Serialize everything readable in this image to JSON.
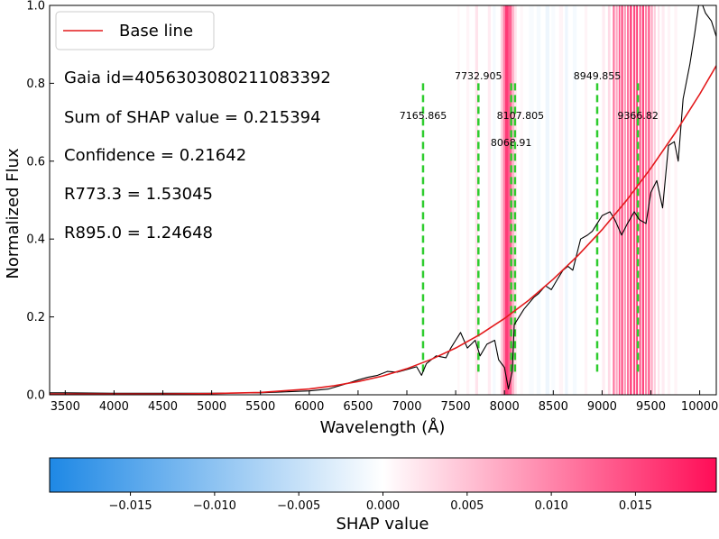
{
  "chart_data": {
    "type": "line",
    "xlabel": "Wavelength (Å)",
    "ylabel": "Normalized Flux",
    "xlim": [
      3340,
      10170
    ],
    "ylim": [
      0,
      1.0
    ],
    "x_ticks": [
      3500,
      4000,
      4500,
      5000,
      5500,
      6000,
      6500,
      7000,
      7500,
      8000,
      8500,
      9000,
      9500,
      10000
    ],
    "y_ticks": [
      0.0,
      0.2,
      0.4,
      0.6,
      0.8,
      1.0
    ],
    "y_tick_labels": [
      "0.0",
      "0.2",
      "0.4",
      "0.6",
      "0.8",
      "1.0"
    ],
    "legend": {
      "position": "top-left",
      "entries": [
        {
          "label": "Base line",
          "color": "#e31a1c"
        }
      ]
    },
    "annotations": [
      "Gaia id=4056303080211083392",
      "Sum of SHAP value = 0.215394",
      "Confidence = 0.21642",
      "R773.3 = 1.53045",
      "R895.0 = 1.24648"
    ],
    "marked_lines": [
      {
        "wavelength": 7165.865,
        "label": "7165.865",
        "y_bottom": 0.05
      },
      {
        "wavelength": 7732.905,
        "label": "7732.905",
        "y_bottom": 0.05
      },
      {
        "wavelength": 8068.91,
        "label": "8068.91",
        "y_bottom": 0.05
      },
      {
        "wavelength": 8107.805,
        "label": "8107.805",
        "y_bottom": 0.05
      },
      {
        "wavelength": 8949.855,
        "label": "8949.855",
        "y_bottom": 0.05
      },
      {
        "wavelength": 9366.82,
        "label": "9366.82",
        "y_bottom": 0.05
      }
    ],
    "marked_line_top": 0.8,
    "baseline": {
      "name": "Base line",
      "x": [
        3340,
        3500,
        4000,
        4500,
        5000,
        5500,
        6000,
        6250,
        6500,
        6750,
        7000,
        7250,
        7500,
        7750,
        8000,
        8250,
        8500,
        8750,
        9000,
        9250,
        9500,
        9750,
        10000,
        10170
      ],
      "y": [
        0.002,
        0.002,
        0.002,
        0.002,
        0.003,
        0.006,
        0.015,
        0.023,
        0.034,
        0.048,
        0.067,
        0.091,
        0.12,
        0.155,
        0.196,
        0.243,
        0.297,
        0.357,
        0.424,
        0.499,
        0.582,
        0.673,
        0.772,
        0.845
      ]
    },
    "spectrum": {
      "name": "Spectrum",
      "x": [
        3340,
        3500,
        4000,
        4500,
        5000,
        5500,
        6000,
        6200,
        6400,
        6500,
        6600,
        6700,
        6800,
        6900,
        7000,
        7100,
        7150,
        7200,
        7300,
        7400,
        7450,
        7500,
        7550,
        7620,
        7700,
        7750,
        7820,
        7900,
        7940,
        8000,
        8040,
        8080,
        8100,
        8150,
        8200,
        8300,
        8350,
        8420,
        8480,
        8550,
        8600,
        8650,
        8700,
        8780,
        8850,
        8900,
        9000,
        9080,
        9130,
        9200,
        9260,
        9330,
        9380,
        9450,
        9500,
        9560,
        9620,
        9680,
        9740,
        9780,
        9830,
        9900,
        9950,
        10000,
        10060,
        10120,
        10170
      ],
      "y": [
        0.005,
        0.005,
        0.004,
        0.004,
        0.004,
        0.005,
        0.01,
        0.015,
        0.03,
        0.038,
        0.045,
        0.05,
        0.06,
        0.058,
        0.065,
        0.072,
        0.05,
        0.08,
        0.1,
        0.095,
        0.12,
        0.14,
        0.16,
        0.12,
        0.14,
        0.1,
        0.13,
        0.14,
        0.09,
        0.07,
        0.015,
        0.06,
        0.18,
        0.2,
        0.22,
        0.25,
        0.26,
        0.28,
        0.27,
        0.3,
        0.32,
        0.33,
        0.32,
        0.4,
        0.41,
        0.42,
        0.46,
        0.47,
        0.45,
        0.41,
        0.44,
        0.47,
        0.45,
        0.44,
        0.52,
        0.55,
        0.48,
        0.64,
        0.65,
        0.6,
        0.76,
        0.85,
        0.93,
        1.02,
        0.98,
        0.96,
        0.92
      ]
    },
    "shap_bands": [
      {
        "x0": 7520,
        "x1": 7540,
        "value": 0.0015
      },
      {
        "x0": 7610,
        "x1": 7640,
        "value": 0.002
      },
      {
        "x0": 7700,
        "x1": 7730,
        "value": 0.004
      },
      {
        "x0": 7830,
        "x1": 7860,
        "value": 0.003
      },
      {
        "x0": 7880,
        "x1": 7910,
        "value": -0.002
      },
      {
        "x0": 7960,
        "x1": 7985,
        "value": 0.006
      },
      {
        "x0": 7985,
        "x1": 8005,
        "value": 0.011
      },
      {
        "x0": 8005,
        "x1": 8040,
        "value": 0.016
      },
      {
        "x0": 8040,
        "x1": 8075,
        "value": 0.013
      },
      {
        "x0": 8075,
        "x1": 8100,
        "value": 0.008
      },
      {
        "x0": 8100,
        "x1": 8125,
        "value": 0.004
      },
      {
        "x0": 8160,
        "x1": 8190,
        "value": 0.0015
      },
      {
        "x0": 8250,
        "x1": 8300,
        "value": -0.0015
      },
      {
        "x0": 8330,
        "x1": 8370,
        "value": -0.002
      },
      {
        "x0": 8420,
        "x1": 8460,
        "value": -0.003
      },
      {
        "x0": 8480,
        "x1": 8520,
        "value": -0.0015
      },
      {
        "x0": 8560,
        "x1": 8600,
        "value": 0.002
      },
      {
        "x0": 8620,
        "x1": 8650,
        "value": -0.003
      },
      {
        "x0": 8700,
        "x1": 8740,
        "value": -0.002
      },
      {
        "x0": 8820,
        "x1": 8850,
        "value": 0.002
      },
      {
        "x0": 9000,
        "x1": 9030,
        "value": 0.003
      },
      {
        "x0": 9060,
        "x1": 9085,
        "value": 0.005
      },
      {
        "x0": 9110,
        "x1": 9130,
        "value": 0.012
      },
      {
        "x0": 9140,
        "x1": 9160,
        "value": 0.009
      },
      {
        "x0": 9170,
        "x1": 9185,
        "value": 0.014
      },
      {
        "x0": 9195,
        "x1": 9215,
        "value": 0.015
      },
      {
        "x0": 9225,
        "x1": 9245,
        "value": 0.01
      },
      {
        "x0": 9255,
        "x1": 9275,
        "value": 0.012
      },
      {
        "x0": 9285,
        "x1": 9305,
        "value": 0.017
      },
      {
        "x0": 9320,
        "x1": 9340,
        "value": 0.015
      },
      {
        "x0": 9350,
        "x1": 9365,
        "value": 0.018
      },
      {
        "x0": 9380,
        "x1": 9400,
        "value": 0.013
      },
      {
        "x0": 9410,
        "x1": 9430,
        "value": 0.016
      },
      {
        "x0": 9440,
        "x1": 9460,
        "value": 0.011
      },
      {
        "x0": 9470,
        "x1": 9490,
        "value": 0.014
      },
      {
        "x0": 9500,
        "x1": 9520,
        "value": 0.009
      },
      {
        "x0": 9530,
        "x1": 9550,
        "value": 0.006
      },
      {
        "x0": 9570,
        "x1": 9590,
        "value": 0.004
      },
      {
        "x0": 9610,
        "x1": 9640,
        "value": 0.003
      },
      {
        "x0": 9670,
        "x1": 9700,
        "value": 0.002
      },
      {
        "x0": 9740,
        "x1": 9770,
        "value": 0.002
      }
    ],
    "colorbar": {
      "label": "SHAP value",
      "vmin": -0.0198,
      "vmax": 0.0198,
      "ticks": [
        -0.015,
        -0.01,
        -0.005,
        0.0,
        0.005,
        0.01,
        0.015
      ],
      "tick_labels": [
        "−0.015",
        "−0.010",
        "−0.005",
        "0.000",
        "0.005",
        "0.010",
        "0.015"
      ],
      "colormap": [
        "#1e88e5",
        "#ffffff",
        "#ff0d57"
      ]
    }
  }
}
